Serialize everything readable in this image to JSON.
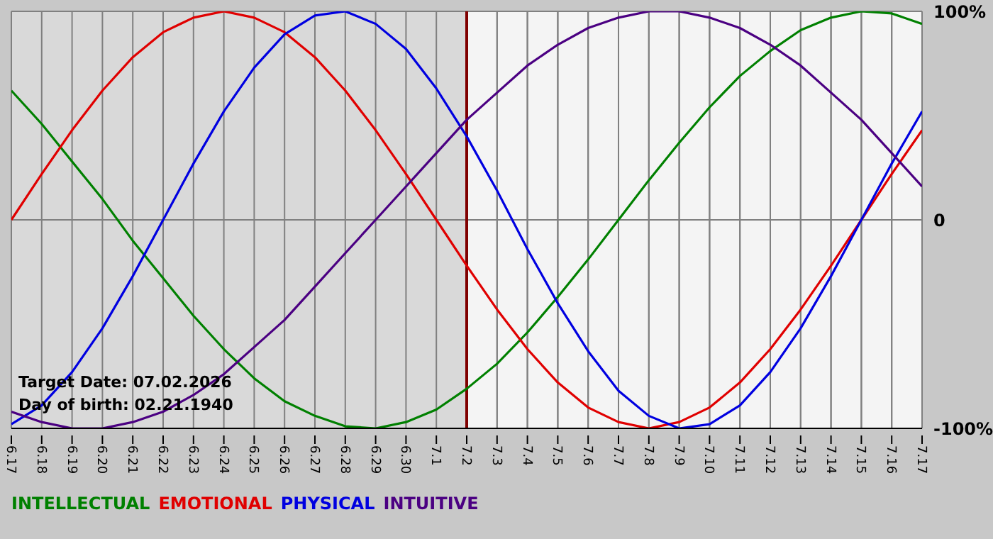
{
  "chart_data": {
    "type": "line",
    "categories": [
      "6.17",
      "6.18",
      "6.19",
      "6.20",
      "6.21",
      "6.22",
      "6.23",
      "6.24",
      "6.25",
      "6.26",
      "6.27",
      "6.28",
      "6.29",
      "6.30",
      "7.1",
      "7.2",
      "7.3",
      "7.4",
      "7.5",
      "7.6",
      "7.7",
      "7.8",
      "7.9",
      "7.10",
      "7.11",
      "7.12",
      "7.13",
      "7.14",
      "7.15",
      "7.16",
      "7.17"
    ],
    "series": [
      {
        "name": "INTELLECTUAL",
        "color": "#008000",
        "values": [
          62,
          46,
          28,
          10,
          -10,
          -28,
          -46,
          -62,
          -76,
          -87,
          -94,
          -99,
          -100,
          -97,
          -91,
          -81,
          -69,
          -54,
          -37,
          -19,
          0,
          19,
          37,
          54,
          69,
          81,
          91,
          97,
          100,
          99,
          94
        ]
      },
      {
        "name": "EMOTIONAL",
        "color": "#e00000",
        "values": [
          0,
          22,
          43,
          62,
          78,
          90,
          97,
          100,
          97,
          90,
          78,
          62,
          43,
          22,
          0,
          -22,
          -43,
          -62,
          -78,
          -90,
          -97,
          -100,
          -97,
          -90,
          -78,
          -62,
          -43,
          -22,
          0,
          22,
          43
        ]
      },
      {
        "name": "PHYSICAL",
        "color": "#0000e0",
        "values": [
          -98,
          -89,
          -73,
          -52,
          -27,
          0,
          27,
          52,
          73,
          89,
          98,
          100,
          94,
          82,
          63,
          40,
          14,
          -14,
          -40,
          -63,
          -82,
          -94,
          -100,
          -98,
          -89,
          -73,
          -52,
          -27,
          0,
          27,
          52
        ]
      },
      {
        "name": "INTUITIVE",
        "color": "#4b0082",
        "values": [
          -92,
          -97,
          -100,
          -100,
          -97,
          -92,
          -84,
          -74,
          -61,
          -48,
          -32,
          -16,
          0,
          16,
          32,
          48,
          61,
          74,
          84,
          92,
          97,
          100,
          100,
          97,
          92,
          84,
          74,
          61,
          48,
          32,
          16
        ]
      }
    ],
    "ylim": [
      -100,
      100
    ],
    "yticks": [
      {
        "value": 100,
        "label": "100%"
      },
      0,
      {
        "value": -100,
        "label": "-100%"
      }
    ],
    "ref_lines": [
      {
        "axis": "x",
        "value": "7.2",
        "color": "#800000"
      }
    ],
    "bands": [
      {
        "axis": "x",
        "from": "6.17",
        "to": "7.2",
        "color": "#d9d9d9"
      }
    ],
    "annotations": [
      "Target Date: 07.02.2026",
      "Day of birth: 02.21.1940"
    ],
    "grid": true,
    "legend": "bottom left",
    "marker": "none",
    "line_style": "solid"
  }
}
